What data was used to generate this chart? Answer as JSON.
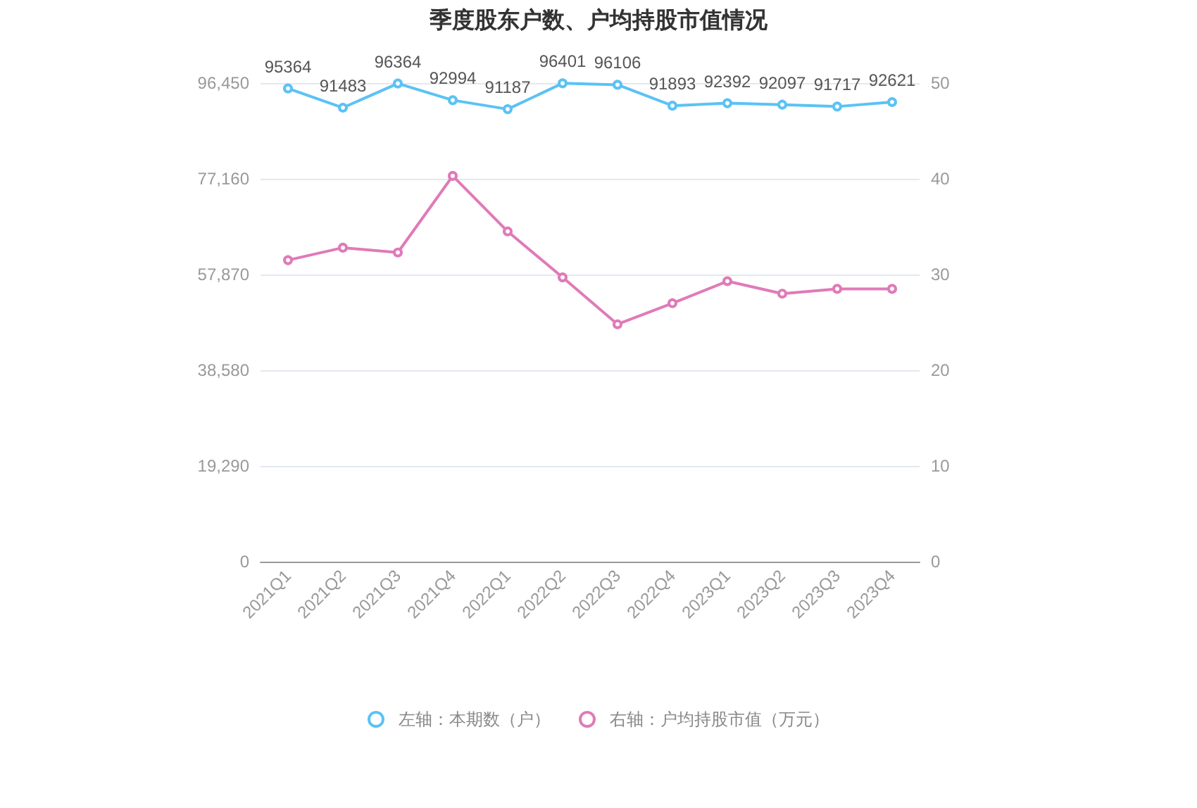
{
  "chart_data": {
    "type": "line",
    "title": "季度股东户数、户均持股市值情况",
    "categories": [
      "2021Q1",
      "2021Q2",
      "2021Q3",
      "2021Q4",
      "2022Q1",
      "2022Q2",
      "2022Q3",
      "2022Q4",
      "2023Q1",
      "2023Q2",
      "2023Q3",
      "2023Q4"
    ],
    "series": [
      {
        "name": "左轴：本期数（户）",
        "color": "#5bc2f5",
        "values": [
          95364,
          91483,
          96364,
          92994,
          91187,
          96401,
          96106,
          91893,
          92392,
          92097,
          91717,
          92621
        ],
        "data_labels": true
      },
      {
        "name": "右轴：户均持股市值（万元）",
        "color": "#e07ab8",
        "axis": "y2",
        "values": [
          31.5,
          32.8,
          32.3,
          40.3,
          34.5,
          29.7,
          24.8,
          27.0,
          29.3,
          28.0,
          28.5,
          28.5
        ]
      }
    ],
    "ylim": [
      0,
      96450
    ],
    "yticks": [
      0,
      {
        "value": 19290,
        "label": "19,290"
      },
      {
        "value": 38580,
        "label": "38,580"
      },
      {
        "value": 57870,
        "label": "57,870"
      },
      {
        "value": 77160,
        "label": "77,160"
      },
      {
        "value": 96450,
        "label": "96,450"
      }
    ],
    "y2lim": [
      0,
      50
    ],
    "y2ticks": [
      0,
      10,
      20,
      30,
      40,
      50
    ],
    "grid": "y",
    "legend": "bottom",
    "marker": "circle",
    "line_style": "solid"
  }
}
